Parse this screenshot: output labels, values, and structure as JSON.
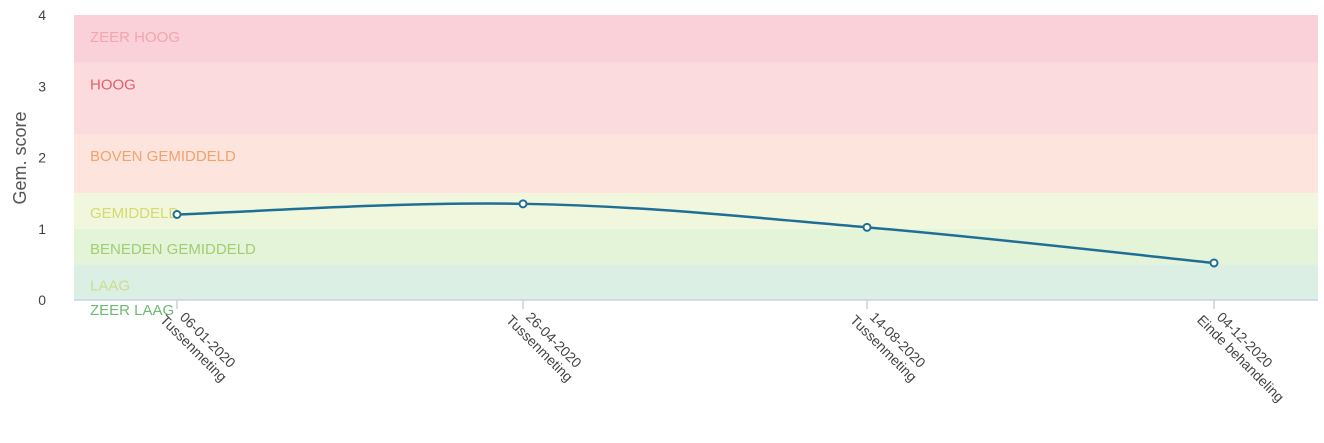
{
  "chart_data": {
    "type": "line",
    "ylabel": "Gem. score",
    "ylim": [
      0,
      4
    ],
    "y_ticks": [
      "0",
      "1",
      "2",
      "3",
      "4"
    ],
    "grid": false,
    "bands": [
      {
        "label": "ZEER LAAG",
        "from": 0.0,
        "to": 0.0,
        "fill": "#dcefe4",
        "text": "#6dbb72"
      },
      {
        "label": "LAAG",
        "from": 0.0,
        "to": 0.5,
        "fill": "#dcefe4",
        "text": "#c9df8a"
      },
      {
        "label": "BENEDEN GEMIDDELD",
        "from": 0.5,
        "to": 1.0,
        "fill": "#e4f4d9",
        "text": "#a3cc73"
      },
      {
        "label": "GEMIDDELD",
        "from": 1.0,
        "to": 1.5,
        "fill": "#f1f7dc",
        "text": "#d6d96e"
      },
      {
        "label": "BOVEN GEMIDDELD",
        "from": 1.5,
        "to": 2.33,
        "fill": "#fde5dd",
        "text": "#f2a26b"
      },
      {
        "label": "HOOG",
        "from": 2.33,
        "to": 3.33,
        "fill": "#fcdbde",
        "text": "#e25f6a"
      },
      {
        "label": "ZEER HOOG",
        "from": 3.33,
        "to": 4.0,
        "fill": "#fad1d8",
        "text": "#f4a5ae"
      }
    ],
    "series": [
      {
        "color": "#1f6e96",
        "points": [
          {
            "date": "06-01-2020",
            "label": "Tussenmeting",
            "value": 1.2
          },
          {
            "date": "26-04-2020",
            "label": "Tussenmeting",
            "value": 1.35
          },
          {
            "date": "14-08-2020",
            "label": "Tussenmeting",
            "value": 1.02
          },
          {
            "date": "04-12-2020",
            "label": "Einde behandeling",
            "value": 0.52
          }
        ]
      }
    ]
  }
}
